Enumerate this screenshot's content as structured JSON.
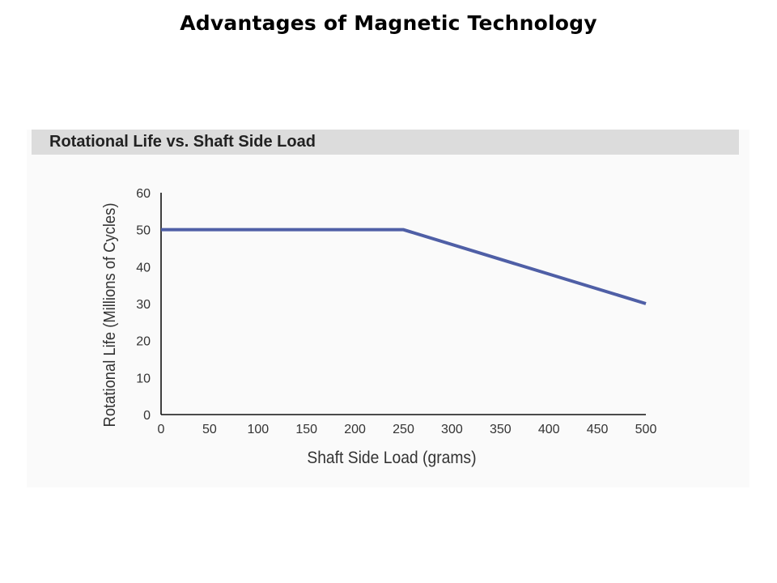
{
  "slide": {
    "title": "Advantages of Magnetic Technology"
  },
  "chart_data": {
    "type": "line",
    "title": "Rotational Life vs. Shaft Side Load",
    "xlabel": "Shaft Side Load (grams)",
    "ylabel": "Rotational Life (Millions of Cycles)",
    "xlim": [
      0,
      500
    ],
    "ylim": [
      0,
      60
    ],
    "xticks": [
      0,
      50,
      100,
      150,
      200,
      250,
      300,
      350,
      400,
      450,
      500
    ],
    "yticks": [
      0,
      10,
      20,
      30,
      40,
      50,
      60
    ],
    "grid": false,
    "series": [
      {
        "x": [
          0,
          250,
          500
        ],
        "y": [
          50,
          50,
          30
        ],
        "color": "#4f5fa6"
      }
    ]
  }
}
